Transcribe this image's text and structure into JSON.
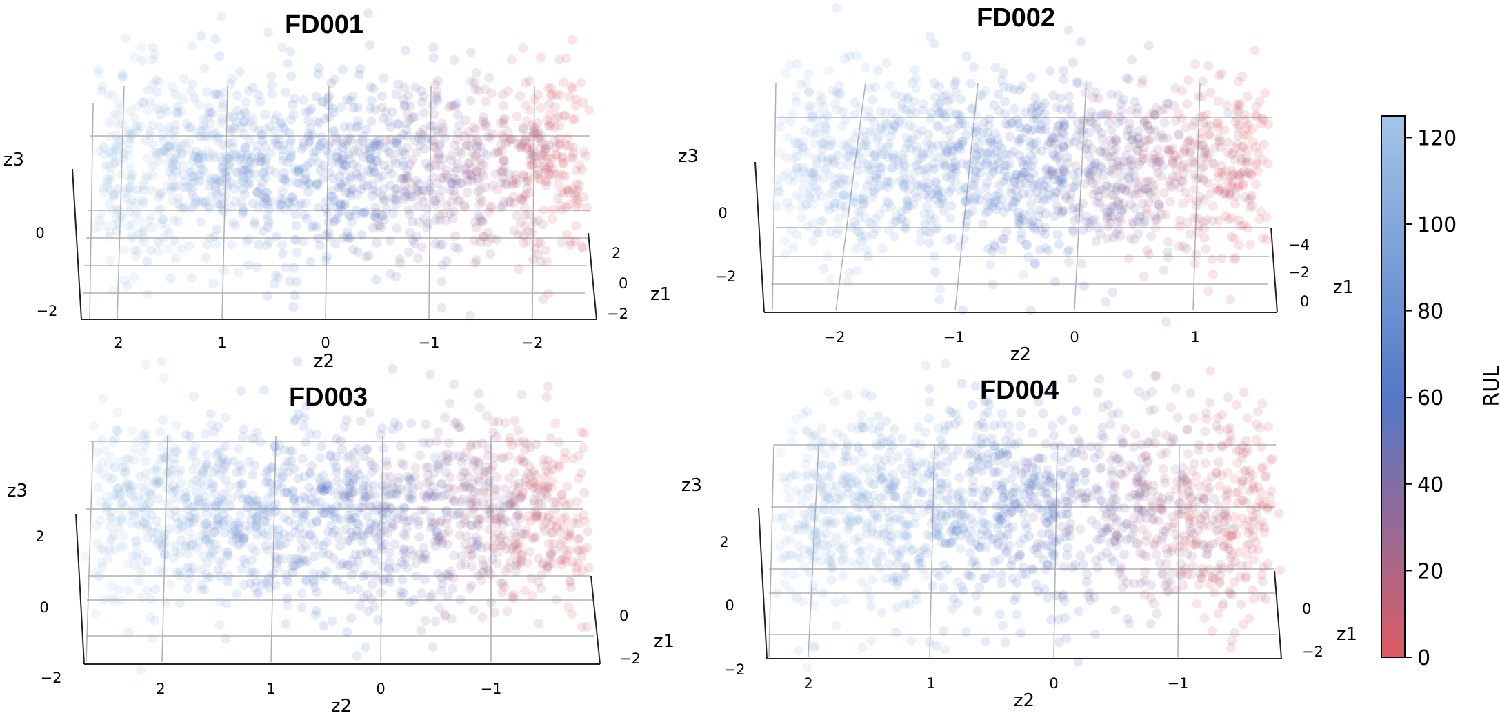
{
  "figure": {
    "colorbar": {
      "label": "RUL",
      "min": 0,
      "max": 125,
      "ticks": [
        "0",
        "20",
        "40",
        "60",
        "80",
        "100",
        "120"
      ],
      "colors": {
        "low": "#dd5c63",
        "mid": "#5378c7",
        "high": "#a3c5e6"
      }
    }
  },
  "chart_data": [
    {
      "type": "scatter",
      "projection": "3d",
      "title": "FD001",
      "axes": {
        "x": "z2",
        "y": "z1",
        "z": "z3"
      },
      "x_ticks": [
        "2",
        "1",
        "0",
        "−1",
        "−2"
      ],
      "y_ticks": [
        "2",
        "0",
        "−2"
      ],
      "z_ticks": [
        "0",
        "−2"
      ],
      "x_range": [
        2.5,
        -2.5
      ],
      "color_by": "RUL",
      "grid": true,
      "trend": "RUL decreases from about 120 at z2 = 2 to about 0 at z2 = −2"
    },
    {
      "type": "scatter",
      "projection": "3d",
      "title": "FD002",
      "axes": {
        "x": "z2",
        "y": "z1",
        "z": "z3"
      },
      "x_ticks": [
        "−2",
        "−1",
        "0",
        "1"
      ],
      "y_ticks": [
        "−4",
        "−2",
        "0"
      ],
      "z_ticks": [
        "0",
        "−2"
      ],
      "x_range": [
        -2.5,
        1.6
      ],
      "color_by": "RUL",
      "grid": true,
      "trend": "RUL decreases from about 120 at z2 = −2 to about 0 at z2 = 1.5"
    },
    {
      "type": "scatter",
      "projection": "3d",
      "title": "FD003",
      "axes": {
        "x": "z2",
        "y": "z1",
        "z": "z3"
      },
      "x_ticks": [
        "2",
        "1",
        "0",
        "−1"
      ],
      "y_ticks": [
        "0",
        "−2"
      ],
      "z_ticks": [
        "2",
        "0",
        "−2"
      ],
      "x_range": [
        2.7,
        -2
      ],
      "color_by": "RUL",
      "grid": true,
      "trend": "RUL decreases from about 120 at z2 = 2 to about 0 at z2 = −1.8"
    },
    {
      "type": "scatter",
      "projection": "3d",
      "title": "FD004",
      "axes": {
        "x": "z2",
        "y": "z1",
        "z": "z3"
      },
      "x_ticks": [
        "2",
        "1",
        "0",
        "−1"
      ],
      "y_ticks": [
        "0",
        "−2"
      ],
      "z_ticks": [
        "2",
        "0",
        "−2"
      ],
      "x_range": [
        2.5,
        -1.8
      ],
      "color_by": "RUL",
      "grid": true,
      "trend": "RUL decreases from about 120 at z2 = 2 to about 0 at z2 = −1.6"
    }
  ]
}
